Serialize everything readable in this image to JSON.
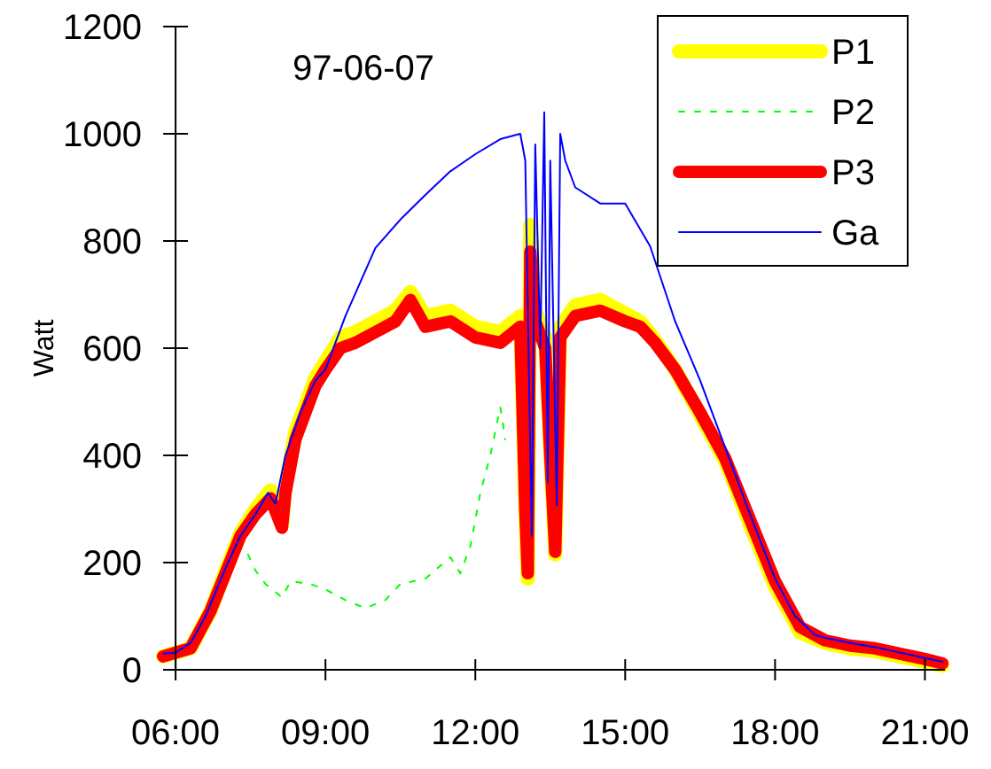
{
  "chart_data": {
    "type": "line",
    "title": "97-06-07",
    "ylabel": "Watt",
    "xlim": [
      5.75,
      21.4
    ],
    "ylim": [
      0,
      1200
    ],
    "xticks": [
      {
        "value": 6,
        "label": "06:00"
      },
      {
        "value": 9,
        "label": "09:00"
      },
      {
        "value": 12,
        "label": "12:00"
      },
      {
        "value": 15,
        "label": "15:00"
      },
      {
        "value": 18,
        "label": "18:00"
      },
      {
        "value": 21,
        "label": "21:00"
      }
    ],
    "yticks": [
      0,
      200,
      400,
      600,
      800,
      1000,
      1200
    ],
    "grid": false,
    "legend": "top right",
    "marker": "none",
    "series": [
      {
        "name": "P1",
        "color": "#ffff00",
        "line_style": "solid",
        "x": [
          5.75,
          6.3,
          6.7,
          7.0,
          7.3,
          7.6,
          7.9,
          8.13,
          8.2,
          8.4,
          8.6,
          8.8,
          9.0,
          9.3,
          9.6,
          10.0,
          10.4,
          10.7,
          11.0,
          11.5,
          12.0,
          12.5,
          12.9,
          13.0,
          13.05,
          13.1,
          13.2,
          13.4,
          13.5,
          13.6,
          13.7,
          14.0,
          14.5,
          15.0,
          15.3,
          15.6,
          16.0,
          16.5,
          17.0,
          17.5,
          18.0,
          18.5,
          19.0,
          19.5,
          20.0,
          20.5,
          21.0,
          21.35
        ],
        "values": [
          25,
          40,
          110,
          185,
          255,
          300,
          335,
          270,
          345,
          445,
          495,
          545,
          575,
          620,
          630,
          650,
          670,
          705,
          660,
          670,
          640,
          630,
          660,
          300,
          170,
          830,
          670,
          620,
          410,
          215,
          640,
          680,
          690,
          665,
          650,
          615,
          560,
          475,
          390,
          270,
          155,
          70,
          50,
          40,
          35,
          25,
          15,
          8
        ]
      },
      {
        "name": "P2",
        "color": "#00ff00",
        "line_style": "dashed",
        "x": [
          7.45,
          7.6,
          7.8,
          8.13,
          8.3,
          8.7,
          9.0,
          9.4,
          9.8,
          10.2,
          10.5,
          11.0,
          11.5,
          11.7,
          11.9,
          12.1,
          12.3,
          12.5,
          12.6
        ],
        "values": [
          215,
          185,
          160,
          135,
          165,
          160,
          150,
          130,
          115,
          130,
          160,
          170,
          210,
          180,
          230,
          330,
          400,
          490,
          430
        ]
      },
      {
        "name": "P3",
        "color": "#ff0000",
        "line_style": "solid",
        "x": [
          5.75,
          6.3,
          6.7,
          7.0,
          7.3,
          7.6,
          7.9,
          8.13,
          8.2,
          8.4,
          8.6,
          8.8,
          9.0,
          9.3,
          9.6,
          10.0,
          10.4,
          10.7,
          11.0,
          11.5,
          12.0,
          12.5,
          12.9,
          13.0,
          13.05,
          13.1,
          13.2,
          13.4,
          13.5,
          13.6,
          13.7,
          14.0,
          14.5,
          15.0,
          15.3,
          15.6,
          16.0,
          16.5,
          17.0,
          17.5,
          18.0,
          18.5,
          19.0,
          19.5,
          20.0,
          20.5,
          21.0,
          21.35
        ],
        "values": [
          25,
          40,
          110,
          180,
          250,
          290,
          320,
          265,
          330,
          430,
          480,
          530,
          560,
          600,
          610,
          630,
          650,
          690,
          640,
          650,
          620,
          610,
          640,
          300,
          180,
          780,
          650,
          600,
          400,
          220,
          620,
          660,
          670,
          650,
          640,
          610,
          560,
          480,
          395,
          280,
          165,
          80,
          55,
          45,
          40,
          30,
          20,
          12
        ]
      },
      {
        "name": "Ga",
        "color": "#0000ff",
        "line_style": "solid",
        "x": [
          5.75,
          6.0,
          6.3,
          6.6,
          7.0,
          7.3,
          7.6,
          7.85,
          8.0,
          8.2,
          8.5,
          8.8,
          9.0,
          9.4,
          10.0,
          10.5,
          11.0,
          11.5,
          12.0,
          12.5,
          12.9,
          13.0,
          13.13,
          13.2,
          13.3,
          13.38,
          13.45,
          13.5,
          13.63,
          13.7,
          13.8,
          14.0,
          14.5,
          15.0,
          15.5,
          16.0,
          16.5,
          17.0,
          17.5,
          18.0,
          18.4,
          18.8,
          19.0,
          19.5,
          20.0,
          20.5,
          21.0,
          21.35
        ],
        "values": [
          30,
          32,
          50,
          100,
          190,
          250,
          290,
          330,
          310,
          400,
          480,
          540,
          560,
          660,
          787,
          840,
          886,
          930,
          962,
          990,
          1000,
          950,
          250,
          980,
          600,
          1040,
          350,
          950,
          307,
          1000,
          950,
          900,
          870,
          870,
          790,
          650,
          540,
          415,
          290,
          170,
          100,
          65,
          60,
          50,
          42,
          32,
          22,
          15
        ]
      }
    ]
  }
}
